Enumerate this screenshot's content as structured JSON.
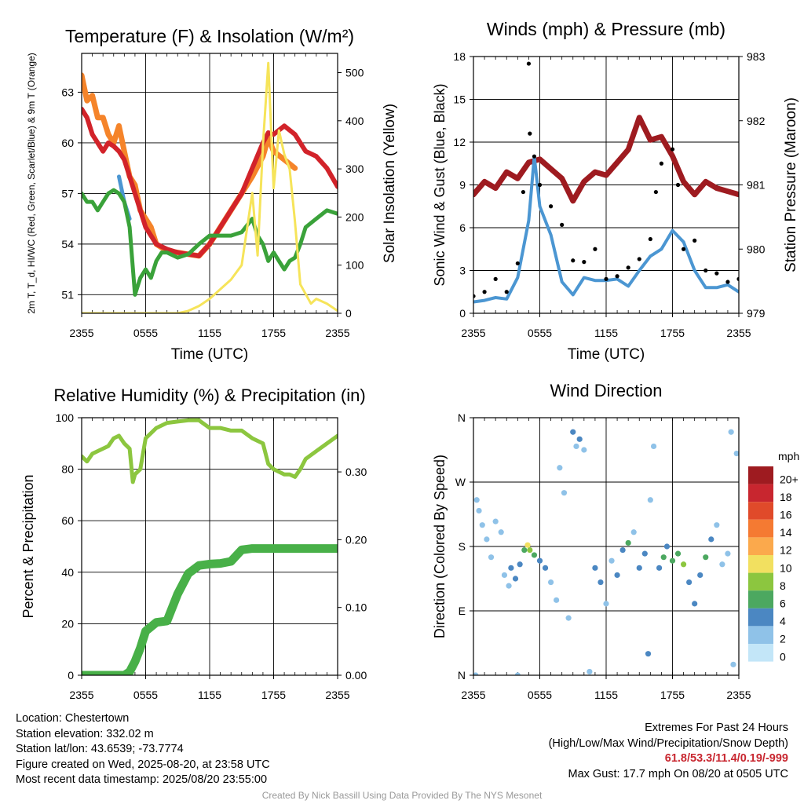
{
  "chart_data": [
    {
      "type": "line",
      "title": "Temperature (F) & Insolation (W/m²)",
      "xlabel": "Time (UTC)",
      "ylabel_left": "2m T, T_d, HI/WC (Red, Green, Scarlet/Blue) & 9m T (Orange)",
      "ylabel_right": "Solar Insolation (Yellow)",
      "x_ticks": [
        "2355",
        "0555",
        "1155",
        "1755",
        "2355"
      ],
      "y_ticks_left": [
        "51",
        "54",
        "57",
        "60",
        "63"
      ],
      "y_ticks_right": [
        "0",
        "100",
        "200",
        "300",
        "400",
        "500"
      ],
      "ylim": [
        49.9,
        65.3
      ],
      "ylim_right": [
        0,
        540
      ],
      "x_hours": [
        0,
        24
      ],
      "series": [
        {
          "color": "#f5842a",
          "x": [
            0,
            0.5,
            1,
            1.5,
            2,
            2.5,
            3,
            3.5,
            4,
            4.5,
            5,
            5.5,
            6,
            6.5,
            7,
            8,
            9,
            10,
            11,
            12,
            13,
            14,
            15,
            16,
            17,
            17.5,
            18,
            19,
            20
          ],
          "y": [
            64,
            62.5,
            62.8,
            61.5,
            61.5,
            60.5,
            60,
            61,
            59.5,
            58,
            57.5,
            56,
            55.5,
            55,
            54,
            53.6,
            53.5,
            53.4,
            53.3,
            54,
            55,
            56,
            57,
            58,
            59.2,
            60.3,
            59.5,
            59,
            58.5
          ]
        },
        {
          "color": "#d2232a",
          "x": [
            0,
            0.5,
            1,
            1.5,
            2,
            2.5,
            3,
            3.5,
            4,
            4.5,
            5,
            5.5,
            6,
            6.5,
            7,
            8,
            9,
            10,
            11,
            12,
            13,
            14,
            15,
            16,
            17,
            17.5,
            18,
            19,
            20,
            21,
            22,
            23,
            24
          ],
          "y": [
            62,
            61.5,
            60.5,
            60,
            59.5,
            60,
            59.8,
            59.5,
            59,
            58,
            57,
            56,
            55,
            54.5,
            54,
            53.7,
            53.5,
            53.4,
            53.3,
            54,
            55,
            56,
            57,
            58.5,
            60,
            60.6,
            60.5,
            61,
            60.5,
            59.5,
            59.2,
            58.5,
            57.4
          ]
        },
        {
          "color": "#4b96d2",
          "x": [
            3.5,
            4,
            4.5
          ],
          "y": [
            58,
            56.5,
            55.5
          ]
        },
        {
          "color": "#3aa23a",
          "x": [
            0,
            0.5,
            1,
            1.5,
            2,
            2.5,
            3,
            3.5,
            4,
            4.5,
            5,
            5.5,
            6,
            6.5,
            7,
            7.5,
            8,
            9,
            10,
            11,
            12,
            13,
            14,
            15,
            16,
            16.5,
            17,
            17.5,
            18,
            18.5,
            19,
            19.5,
            20,
            20.5,
            21,
            22,
            23,
            24
          ],
          "y": [
            57,
            56.5,
            56.5,
            56,
            56.5,
            57,
            57.2,
            57,
            56.5,
            55,
            51,
            52,
            52.5,
            52,
            53,
            53.5,
            53.5,
            53.2,
            53.4,
            54,
            54.5,
            54.5,
            54.5,
            54.7,
            55.5,
            54.5,
            54,
            53,
            53.5,
            53,
            52.5,
            53,
            53.2,
            54,
            55,
            55.5,
            56,
            55.8
          ]
        },
        {
          "color": "#f6e45a",
          "axis": "right",
          "x": [
            0,
            2,
            4,
            6,
            8,
            9,
            10,
            11,
            12,
            13,
            14,
            15,
            16,
            16.5,
            17,
            17.5,
            18,
            18.5,
            19,
            19.5,
            20,
            20.5,
            21,
            21.5,
            22,
            23,
            24
          ],
          "y": [
            0,
            0,
            0,
            0,
            0,
            0,
            5,
            15,
            30,
            50,
            70,
            100,
            250,
            120,
            350,
            520,
            260,
            380,
            330,
            300,
            190,
            60,
            40,
            20,
            30,
            20,
            5
          ]
        }
      ]
    },
    {
      "type": "line",
      "title": "Winds (mph) & Pressure (mb)",
      "xlabel": "Time (UTC)",
      "ylabel_left": "Sonic Wind & Gust (Blue, Black)",
      "ylabel_right": "Station Pressure (Maroon)",
      "x_ticks": [
        "2355",
        "0555",
        "1155",
        "1755",
        "2355"
      ],
      "y_ticks_left": [
        "0",
        "3",
        "6",
        "9",
        "12",
        "15",
        "18"
      ],
      "y_ticks_right": [
        "979",
        "980",
        "981",
        "982",
        "983"
      ],
      "ylim": [
        0,
        18
      ],
      "ylim_right": [
        979,
        983
      ],
      "x_hours": [
        0,
        24
      ],
      "series": [
        {
          "color": "#9e1b20",
          "axis": "right",
          "x": [
            0,
            1,
            2,
            3,
            4,
            5,
            6,
            7,
            8,
            9,
            10,
            11,
            12,
            13,
            14,
            15,
            16,
            17,
            18,
            19,
            20,
            21,
            22,
            23,
            24
          ],
          "y": [
            980.85,
            981.05,
            980.95,
            981.2,
            981.1,
            981.35,
            981.4,
            981.25,
            981.1,
            980.75,
            981.05,
            981.2,
            981.15,
            981.35,
            981.55,
            982.05,
            981.7,
            981.75,
            981.45,
            981.05,
            980.85,
            981.05,
            980.95,
            980.9,
            980.85
          ]
        },
        {
          "color": "#4b96d2",
          "x": [
            0,
            1,
            2,
            3,
            4,
            5,
            5.5,
            6,
            7,
            8,
            9,
            10,
            11,
            12,
            13,
            14,
            15,
            16,
            17,
            18,
            19,
            20,
            21,
            22,
            23,
            24
          ],
          "y": [
            0.8,
            0.9,
            1.1,
            1.0,
            2.5,
            6.5,
            11,
            7.5,
            5.5,
            2.2,
            1.3,
            2.5,
            2.3,
            2.3,
            2.4,
            1.9,
            3.0,
            4.0,
            4.5,
            5.8,
            5.0,
            3.0,
            1.8,
            1.8,
            2.0,
            1.5
          ]
        },
        {
          "color": "#000000",
          "marker": "dot",
          "x": [
            0,
            1,
            2,
            3,
            4,
            4.5,
            5,
            5.1,
            5.5,
            6,
            7,
            8,
            9,
            10,
            11,
            12,
            13,
            14,
            15,
            16,
            16.5,
            17,
            18,
            18.5,
            19,
            20,
            21,
            22,
            23,
            24
          ],
          "y": [
            1.2,
            1.5,
            2.4,
            1.5,
            3.5,
            8.5,
            17.5,
            12.6,
            11,
            9,
            7.5,
            6.2,
            3.7,
            3.6,
            4.5,
            2.4,
            2.6,
            3.2,
            3.8,
            5.2,
            8.5,
            10.5,
            11.5,
            9,
            4.5,
            5.1,
            3.0,
            2.8,
            2.2,
            2.4
          ]
        }
      ]
    },
    {
      "type": "line",
      "title": "Relative Humidity (%) & Precipitation (in)",
      "ylabel_left": "Percent & Precipitation",
      "x_ticks": [
        "2355",
        "0555",
        "1155",
        "1755",
        "2355"
      ],
      "y_ticks_left": [
        "0",
        "20",
        "40",
        "60",
        "80",
        "100"
      ],
      "y_ticks_right": [
        "0.00",
        "0.10",
        "0.20",
        "0.30"
      ],
      "ylim": [
        0,
        100
      ],
      "ylim_right": [
        0,
        0.38
      ],
      "x_hours": [
        0,
        24
      ],
      "series": [
        {
          "color": "#8cc63f",
          "x": [
            0,
            0.5,
            1,
            1.5,
            2,
            2.5,
            3,
            3.5,
            4,
            4.5,
            4.8,
            5,
            5.5,
            6,
            6.5,
            7,
            8,
            9,
            10,
            11,
            12,
            13,
            14,
            15,
            16,
            17,
            17.5,
            18,
            18.5,
            19,
            19.5,
            20,
            20.5,
            21,
            22,
            23,
            24
          ],
          "y": [
            85,
            83,
            86,
            87,
            88,
            89,
            92,
            93,
            90,
            88,
            75,
            78,
            80,
            92,
            94,
            96,
            98,
            98.5,
            99,
            99,
            96,
            96,
            95,
            95,
            92,
            90,
            82,
            80,
            79,
            78,
            78,
            77,
            80,
            84,
            87,
            90,
            93
          ]
        },
        {
          "color": "#48b048",
          "axis": "right",
          "x": [
            0,
            2,
            4,
            4.5,
            5,
            5.5,
            6,
            7,
            8,
            9,
            10,
            11,
            12,
            13,
            14,
            15,
            16,
            17,
            18,
            19,
            20,
            21,
            22,
            23,
            24
          ],
          "y": [
            0,
            0,
            0,
            0.005,
            0.02,
            0.04,
            0.065,
            0.078,
            0.08,
            0.12,
            0.15,
            0.162,
            0.164,
            0.165,
            0.168,
            0.185,
            0.187,
            0.187,
            0.187,
            0.187,
            0.187,
            0.187,
            0.187,
            0.187,
            0.187
          ]
        }
      ]
    },
    {
      "type": "scatter",
      "title": "Wind Direction",
      "ylabel_left": "Direction (Colored By Speed)",
      "x_ticks": [
        "2355",
        "0555",
        "1155",
        "1755",
        "2355"
      ],
      "y_ticks_left": [
        "N",
        "E",
        "S",
        "W",
        "N"
      ],
      "ylim": [
        0,
        360
      ],
      "x_hours": [
        0,
        24
      ],
      "colorbar": {
        "title": "mph",
        "labels": [
          "20+",
          "18",
          "16",
          "14",
          "12",
          "10",
          "8",
          "6",
          "4",
          "2",
          "0"
        ],
        "colors": [
          "#9e1b20",
          "#c8262f",
          "#e04a2a",
          "#f57a32",
          "#fba94c",
          "#f2e060",
          "#8cc63f",
          "#4ca860",
          "#4b87c2",
          "#8fc2e8",
          "#c3e6f8"
        ]
      },
      "points": [
        {
          "x": 0.2,
          "y": 0,
          "speed": 1
        },
        {
          "x": 0.3,
          "y": 245,
          "speed": 1
        },
        {
          "x": 0.5,
          "y": 230,
          "speed": 1
        },
        {
          "x": 0.8,
          "y": 210,
          "speed": 1
        },
        {
          "x": 1.2,
          "y": 190,
          "speed": 1
        },
        {
          "x": 1.6,
          "y": 165,
          "speed": 2
        },
        {
          "x": 2.0,
          "y": 215,
          "speed": 1
        },
        {
          "x": 2.5,
          "y": 200,
          "speed": 1
        },
        {
          "x": 2.8,
          "y": 140,
          "speed": 2
        },
        {
          "x": 3.2,
          "y": 125,
          "speed": 2
        },
        {
          "x": 3.4,
          "y": 150,
          "speed": 3
        },
        {
          "x": 3.8,
          "y": 135,
          "speed": 3
        },
        {
          "x": 4.0,
          "y": 0,
          "speed": 1
        },
        {
          "x": 4.2,
          "y": 155,
          "speed": 4
        },
        {
          "x": 4.6,
          "y": 175,
          "speed": 5
        },
        {
          "x": 4.9,
          "y": 182,
          "speed": 10
        },
        {
          "x": 5.1,
          "y": 175,
          "speed": 7
        },
        {
          "x": 5.5,
          "y": 168,
          "speed": 6
        },
        {
          "x": 6.0,
          "y": 160,
          "speed": 4
        },
        {
          "x": 6.5,
          "y": 150,
          "speed": 3
        },
        {
          "x": 7.0,
          "y": 130,
          "speed": 2
        },
        {
          "x": 7.5,
          "y": 105,
          "speed": 2
        },
        {
          "x": 7.8,
          "y": 290,
          "speed": 1
        },
        {
          "x": 8.2,
          "y": 255,
          "speed": 2
        },
        {
          "x": 8.6,
          "y": 80,
          "speed": 2
        },
        {
          "x": 9.0,
          "y": 340,
          "speed": 3
        },
        {
          "x": 9.3,
          "y": 320,
          "speed": 2
        },
        {
          "x": 9.6,
          "y": 330,
          "speed": 4
        },
        {
          "x": 10.0,
          "y": 315,
          "speed": 2
        },
        {
          "x": 10.5,
          "y": 5,
          "speed": 1
        },
        {
          "x": 11.0,
          "y": 150,
          "speed": 3
        },
        {
          "x": 11.5,
          "y": 130,
          "speed": 3
        },
        {
          "x": 12.0,
          "y": 100,
          "speed": 2
        },
        {
          "x": 12.5,
          "y": 160,
          "speed": 2
        },
        {
          "x": 13.0,
          "y": 140,
          "speed": 4
        },
        {
          "x": 13.5,
          "y": 175,
          "speed": 3
        },
        {
          "x": 14.0,
          "y": 185,
          "speed": 5
        },
        {
          "x": 14.5,
          "y": 200,
          "speed": 2
        },
        {
          "x": 15.0,
          "y": 150,
          "speed": 4
        },
        {
          "x": 15.5,
          "y": 170,
          "speed": 4
        },
        {
          "x": 15.8,
          "y": 30,
          "speed": 4
        },
        {
          "x": 16.0,
          "y": 245,
          "speed": 2
        },
        {
          "x": 16.3,
          "y": 320,
          "speed": 1
        },
        {
          "x": 16.8,
          "y": 150,
          "speed": 4
        },
        {
          "x": 17.2,
          "y": 165,
          "speed": 5
        },
        {
          "x": 17.5,
          "y": 180,
          "speed": 4
        },
        {
          "x": 18.0,
          "y": 160,
          "speed": 6
        },
        {
          "x": 18.5,
          "y": 170,
          "speed": 6
        },
        {
          "x": 19.0,
          "y": 155,
          "speed": 7
        },
        {
          "x": 19.5,
          "y": 130,
          "speed": 4
        },
        {
          "x": 20.0,
          "y": 100,
          "speed": 4
        },
        {
          "x": 20.5,
          "y": 140,
          "speed": 3
        },
        {
          "x": 21.0,
          "y": 165,
          "speed": 6
        },
        {
          "x": 21.5,
          "y": 190,
          "speed": 3
        },
        {
          "x": 22.0,
          "y": 210,
          "speed": 2
        },
        {
          "x": 22.5,
          "y": 155,
          "speed": 2
        },
        {
          "x": 23.0,
          "y": 170,
          "speed": 2
        },
        {
          "x": 23.3,
          "y": 340,
          "speed": 1
        },
        {
          "x": 23.5,
          "y": 15,
          "speed": 1
        },
        {
          "x": 23.8,
          "y": 310,
          "speed": 1
        }
      ]
    }
  ],
  "info": {
    "location": "Location: Chestertown",
    "elevation": "Station elevation: 332.02 m",
    "latlon": "Station lat/lon: 43.6539; -73.7774",
    "created": "Figure created on Wed, 2025-08-20, at 23:58 UTC",
    "recent": "Most recent data timestamp: 2025/08/20 23:55:00"
  },
  "extremes": {
    "line1": "Extremes For Past 24 Hours",
    "line2": "(High/Low/Max Wind/Precipitation/Snow Depth)",
    "values": "61.8/53.3/11.4/0.19/-999",
    "gust": "Max Gust: 17.7 mph On 08/20 at 0505 UTC"
  },
  "credit": "Created By Nick Bassill Using Data Provided By The NYS Mesonet"
}
